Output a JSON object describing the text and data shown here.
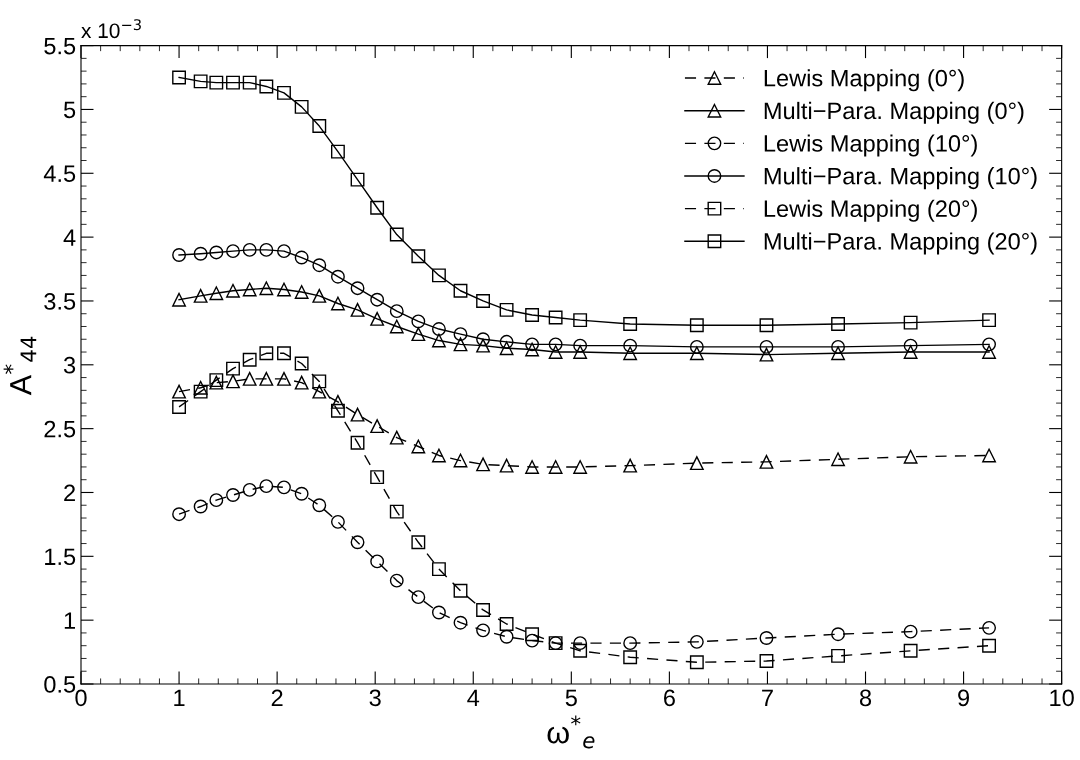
{
  "chart_data": {
    "type": "line",
    "xlabel": "ω$^{*}$$_{e}$",
    "ylabel": "A$^{*}$$_{44}$",
    "annotations": [
      "x 10$^{−3}$"
    ],
    "x": [
      1.0,
      1.22,
      1.38,
      1.55,
      1.72,
      1.89,
      2.07,
      2.25,
      2.43,
      2.62,
      2.82,
      3.02,
      3.22,
      3.44,
      3.65,
      3.87,
      4.1,
      4.34,
      4.6,
      4.84,
      5.09,
      5.6,
      6.28,
      6.99,
      7.72,
      8.46,
      9.26
    ],
    "series": [
      {
        "name": "Lewis Mapping (0°)",
        "color": "#000000",
        "marker": "triangle",
        "line_style": "dashed",
        "values": [
          2.79,
          2.82,
          2.86,
          2.87,
          2.89,
          2.89,
          2.89,
          2.86,
          2.79,
          2.71,
          2.61,
          2.52,
          2.43,
          2.36,
          2.29,
          2.25,
          2.22,
          2.21,
          2.2,
          2.2,
          2.2,
          2.21,
          2.23,
          2.24,
          2.26,
          2.28,
          2.29
        ]
      },
      {
        "name": "Multi−Para. Mapping (0°)",
        "color": "#000000",
        "marker": "triangle",
        "line_style": "solid",
        "values": [
          3.51,
          3.54,
          3.56,
          3.58,
          3.59,
          3.6,
          3.59,
          3.57,
          3.54,
          3.48,
          3.43,
          3.36,
          3.3,
          3.24,
          3.19,
          3.16,
          3.15,
          3.13,
          3.12,
          3.1,
          3.1,
          3.09,
          3.09,
          3.08,
          3.09,
          3.1,
          3.1
        ]
      },
      {
        "name": "Lewis Mapping (10°)",
        "color": "#000000",
        "marker": "circle",
        "line_style": "dashed",
        "values": [
          1.83,
          1.89,
          1.94,
          1.98,
          2.02,
          2.05,
          2.04,
          1.99,
          1.9,
          1.77,
          1.61,
          1.46,
          1.31,
          1.18,
          1.06,
          0.98,
          0.92,
          0.87,
          0.84,
          0.82,
          0.82,
          0.82,
          0.83,
          0.86,
          0.89,
          0.91,
          0.94
        ]
      },
      {
        "name": "Multi−Para. Mapping (10°)",
        "color": "#000000",
        "marker": "circle",
        "line_style": "solid",
        "values": [
          3.86,
          3.87,
          3.88,
          3.89,
          3.9,
          3.9,
          3.89,
          3.84,
          3.78,
          3.69,
          3.6,
          3.51,
          3.42,
          3.34,
          3.28,
          3.24,
          3.2,
          3.18,
          3.16,
          3.16,
          3.15,
          3.15,
          3.14,
          3.14,
          3.14,
          3.15,
          3.16
        ]
      },
      {
        "name": "Lewis Mapping (20°)",
        "color": "#000000",
        "marker": "square",
        "line_style": "dashed",
        "values": [
          2.67,
          2.79,
          2.88,
          2.97,
          3.04,
          3.09,
          3.09,
          3.01,
          2.87,
          2.64,
          2.39,
          2.12,
          1.85,
          1.61,
          1.4,
          1.23,
          1.08,
          0.97,
          0.89,
          0.82,
          0.76,
          0.71,
          0.67,
          0.68,
          0.72,
          0.76,
          0.8
        ]
      },
      {
        "name": "Multi−Para. Mapping (20°)",
        "color": "#000000",
        "marker": "square",
        "line_style": "solid",
        "values": [
          5.25,
          5.22,
          5.21,
          5.21,
          5.21,
          5.18,
          5.13,
          5.02,
          4.87,
          4.67,
          4.45,
          4.23,
          4.02,
          3.85,
          3.7,
          3.58,
          3.5,
          3.43,
          3.39,
          3.37,
          3.35,
          3.32,
          3.31,
          3.31,
          3.32,
          3.33,
          3.35
        ]
      }
    ],
    "xlim": [
      0,
      10
    ],
    "xticks": [
      0,
      1,
      2,
      3,
      4,
      5,
      6,
      7,
      8,
      9,
      10
    ],
    "ylim": [
      0.5,
      5.5
    ],
    "yticks": [
      0.5,
      1,
      1.5,
      2,
      2.5,
      3,
      3.5,
      4,
      4.5,
      5,
      5.5
    ],
    "grid": false,
    "legend": "top right"
  }
}
